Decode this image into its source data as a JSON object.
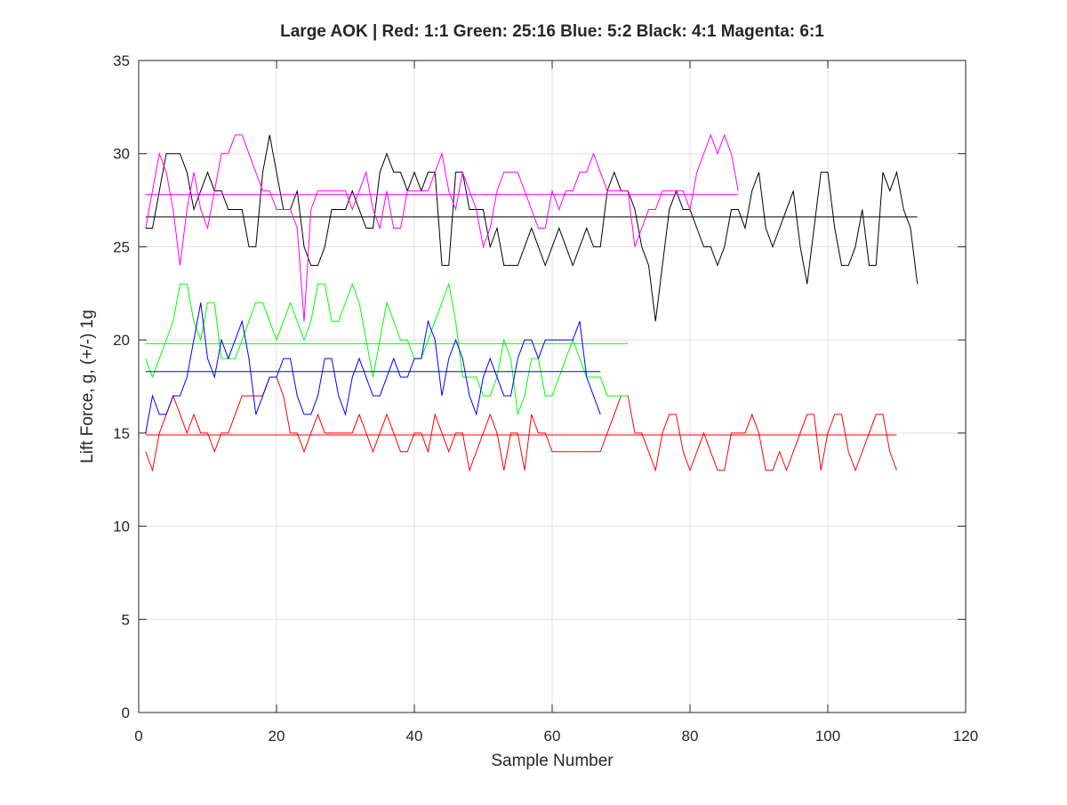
{
  "chart_data": {
    "type": "line",
    "title": "Large AOK | Red: 1:1  Green: 25:16  Blue: 5:2 Black: 4:1  Magenta: 6:1",
    "xlabel": "Sample Number",
    "ylabel": "Lift Force, g, (+/-) 1g",
    "xlim": [
      0,
      120
    ],
    "ylim": [
      0,
      35
    ],
    "xticks": [
      "0",
      "20",
      "40",
      "60",
      "80",
      "100",
      "120"
    ],
    "yticks": [
      "0",
      "5",
      "10",
      "15",
      "20",
      "25",
      "30",
      "35"
    ],
    "grid": true,
    "legend": "none",
    "series": [
      {
        "color": "#ff0000",
        "x_start": 1,
        "mean": 14.9,
        "values": [
          14,
          13,
          15,
          16,
          17,
          16,
          15,
          16,
          15,
          15,
          14,
          15,
          15,
          16,
          17,
          17,
          17,
          17,
          18,
          18,
          17,
          15,
          15,
          14,
          15,
          16,
          15,
          15,
          15,
          15,
          15,
          16,
          15,
          14,
          15,
          16,
          15,
          14,
          14,
          15,
          15,
          14,
          16,
          15,
          14,
          15,
          15,
          13,
          14,
          15,
          16,
          15,
          13,
          15,
          15,
          13,
          16,
          15,
          15,
          14,
          14,
          14,
          14,
          14,
          14,
          14,
          14,
          15,
          16,
          17,
          17,
          15,
          15,
          14,
          13,
          15,
          16,
          16,
          14,
          13,
          14,
          15,
          14,
          13,
          13,
          15,
          15,
          15,
          16,
          15,
          13,
          13,
          14,
          13,
          14,
          15,
          16,
          16,
          13,
          15,
          16,
          16,
          14,
          13,
          14,
          15,
          16,
          16,
          14,
          13
        ]
      },
      {
        "color": "#00ff00",
        "x_start": 1,
        "mean": 19.8,
        "values": [
          19,
          18,
          19,
          20,
          21,
          23,
          23,
          21,
          20,
          22,
          22,
          19,
          19,
          19,
          20,
          21,
          22,
          22,
          21,
          20,
          21,
          22,
          21,
          20,
          21,
          23,
          23,
          21,
          21,
          22,
          23,
          22,
          20,
          18,
          20,
          22,
          21,
          20,
          20,
          19,
          19,
          20,
          21,
          22,
          23,
          21,
          18,
          18,
          18,
          17,
          17,
          18,
          20,
          19,
          16,
          17,
          19,
          19,
          17,
          17,
          18,
          19,
          20,
          19,
          18,
          18,
          18,
          17,
          17,
          17,
          17
        ]
      },
      {
        "color": "#0000ff",
        "x_start": 1,
        "mean": 18.3,
        "values": [
          15,
          17,
          16,
          16,
          17,
          17,
          18,
          20,
          22,
          19,
          18,
          20,
          19,
          20,
          21,
          19,
          16,
          17,
          18,
          18,
          19,
          19,
          17,
          16,
          16,
          17,
          19,
          19,
          17,
          16,
          18,
          19,
          18,
          17,
          17,
          18,
          19,
          18,
          18,
          19,
          19,
          21,
          20,
          17,
          19,
          20,
          19,
          17,
          16,
          18,
          19,
          18,
          17,
          17,
          19,
          20,
          20,
          19,
          20,
          20,
          20,
          20,
          20,
          21,
          18,
          17,
          16
        ]
      },
      {
        "color": "#000000",
        "x_start": 1,
        "mean": 26.6,
        "values": [
          26,
          26,
          28,
          30,
          30,
          30,
          29,
          27,
          28,
          29,
          28,
          28,
          27,
          27,
          27,
          25,
          25,
          29,
          31,
          29,
          27,
          27,
          28,
          25,
          24,
          24,
          25,
          27,
          27,
          27,
          28,
          27,
          26,
          26,
          29,
          30,
          29,
          29,
          28,
          29,
          28,
          29,
          29,
          24,
          24,
          29,
          29,
          27,
          27,
          27,
          25,
          26,
          24,
          24,
          24,
          25,
          26,
          25,
          24,
          25,
          26,
          25,
          24,
          25,
          26,
          25,
          25,
          28,
          29,
          28,
          28,
          27,
          25,
          24,
          21,
          24,
          27,
          28,
          27,
          27,
          26,
          25,
          25,
          24,
          25,
          27,
          27,
          26,
          28,
          29,
          26,
          25,
          26,
          27,
          28,
          25,
          23,
          26,
          29,
          29,
          26,
          24,
          24,
          25,
          27,
          24,
          24,
          29,
          28,
          29,
          27,
          26,
          23
        ]
      },
      {
        "color": "#ff00ff",
        "x_start": 1,
        "mean": 27.8,
        "values": [
          26,
          28,
          30,
          29,
          27,
          24,
          27,
          29,
          27,
          26,
          28,
          30,
          30,
          31,
          31,
          30,
          29,
          28,
          28,
          27,
          27,
          27,
          26,
          21,
          27,
          28,
          28,
          28,
          28,
          28,
          27,
          28,
          29,
          27,
          26,
          28,
          26,
          26,
          28,
          28,
          28,
          28,
          29,
          30,
          28,
          27,
          29,
          28,
          27,
          25,
          26,
          28,
          29,
          29,
          29,
          28,
          27,
          26,
          26,
          28,
          27,
          28,
          28,
          29,
          29,
          30,
          29,
          28,
          28,
          28,
          28,
          25,
          26,
          27,
          27,
          28,
          28,
          28,
          28,
          27,
          29,
          30,
          31,
          30,
          31,
          30,
          28
        ]
      }
    ]
  }
}
